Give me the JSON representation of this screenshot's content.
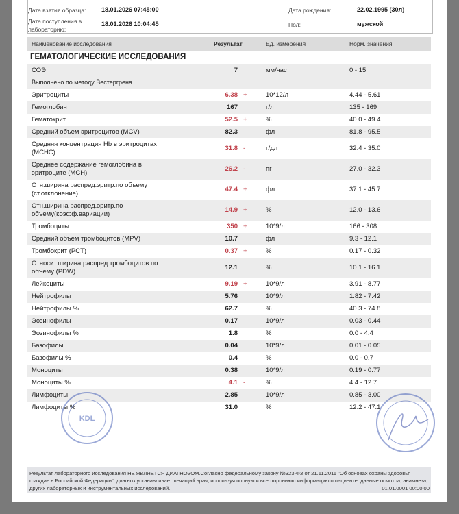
{
  "patient_info": {
    "sample_date_label": "Дата взятия образца:",
    "sample_date": "18.01.2026 07:45:00",
    "lab_date_label": "Дата поступления в лабораторию:",
    "lab_date": "18.01.2026 10:04:45",
    "birth_label": "Дата рождения:",
    "birth": "22.02.1995 (30л)",
    "sex_label": "Пол:",
    "sex": "мужской"
  },
  "table": {
    "headers": {
      "name": "Наименование исследования",
      "result": "Результат",
      "unit": "Ед. измерения",
      "norm": "Норм. значения"
    },
    "section_title": "ГЕМАТОЛОГИЧЕСКИЕ ИССЛЕДОВАНИЯ",
    "rows": [
      {
        "name": "СОЭ",
        "result": "7",
        "flag": "",
        "unit": "мм/час",
        "norm": "0 - 15",
        "note": "Выполнено по методу Вестергрена"
      },
      {
        "name": "Эритроциты",
        "result": "6.38",
        "flag": "+",
        "unit": "10*12/л",
        "norm": "4.44 - 5.61"
      },
      {
        "name": "Гемоглобин",
        "result": "167",
        "flag": "",
        "unit": "г/л",
        "norm": "135 - 169"
      },
      {
        "name": "Гематокрит",
        "result": "52.5",
        "flag": "+",
        "unit": "%",
        "norm": "40.0 - 49.4"
      },
      {
        "name": "Средний объем эритроцитов (MCV)",
        "result": "82.3",
        "flag": "",
        "unit": "фл",
        "norm": "81.8 - 95.5"
      },
      {
        "name": "Средняя концентрация Hb в эритроцитах (MCHC)",
        "result": "31.8",
        "flag": "-",
        "unit": "г/дл",
        "norm": "32.4 - 35.0"
      },
      {
        "name": "Среднее содержание гемоглобина в эритроците (MCH)",
        "result": "26.2",
        "flag": "-",
        "unit": "пг",
        "norm": "27.0 - 32.3"
      },
      {
        "name": "Отн.ширина распред.эритр.по объему (ст.отклонение)",
        "result": "47.4",
        "flag": "+",
        "unit": "фл",
        "norm": "37.1 - 45.7"
      },
      {
        "name": "Отн.ширина распред.эритр.по объему(коэфф.вариации)",
        "result": "14.9",
        "flag": "+",
        "unit": "%",
        "norm": "12.0 - 13.6"
      },
      {
        "name": "Тромбоциты",
        "result": "350",
        "flag": "+",
        "unit": "10*9/л",
        "norm": "166 - 308"
      },
      {
        "name": "Средний объем тромбоцитов (MPV)",
        "result": "10.7",
        "flag": "",
        "unit": "фл",
        "norm": "9.3 - 12.1"
      },
      {
        "name": "Тромбокрит (PCT)",
        "result": "0.37",
        "flag": "+",
        "unit": "%",
        "norm": "0.17 - 0.32"
      },
      {
        "name": "Относит.ширина распред.тромбоцитов по объему (PDW)",
        "result": "12.1",
        "flag": "",
        "unit": "%",
        "norm": "10.1 - 16.1"
      },
      {
        "name": "Лейкоциты",
        "result": "9.19",
        "flag": "+",
        "unit": "10*9/л",
        "norm": "3.91 - 8.77"
      },
      {
        "name": "Нейтрофилы",
        "result": "5.76",
        "flag": "",
        "unit": "10*9/л",
        "norm": "1.82 - 7.42"
      },
      {
        "name": "Нейтрофилы %",
        "result": "62.7",
        "flag": "",
        "unit": "%",
        "norm": "40.3 - 74.8"
      },
      {
        "name": "Эозинофилы",
        "result": "0.17",
        "flag": "",
        "unit": "10*9/л",
        "norm": "0.03 - 0.44"
      },
      {
        "name": "Эозинофилы %",
        "result": "1.8",
        "flag": "",
        "unit": "%",
        "norm": "0.0 - 4.4"
      },
      {
        "name": "Базофилы",
        "result": "0.04",
        "flag": "",
        "unit": "10*9/л",
        "norm": "0.01 - 0.05"
      },
      {
        "name": "Базофилы %",
        "result": "0.4",
        "flag": "",
        "unit": "%",
        "norm": "0.0 - 0.7"
      },
      {
        "name": "Моноциты",
        "result": "0.38",
        "flag": "",
        "unit": "10*9/л",
        "norm": "0.19 - 0.77"
      },
      {
        "name": "Моноциты %",
        "result": "4.1",
        "flag": "-",
        "unit": "%",
        "norm": "4.4 - 12.7"
      },
      {
        "name": "Лимфоциты",
        "result": "2.85",
        "flag": "",
        "unit": "10*9/л",
        "norm": "0.85 - 3.00"
      },
      {
        "name": "Лимфоциты %",
        "result": "31.0",
        "flag": "",
        "unit": "%",
        "norm": "12.2 - 47.1"
      }
    ]
  },
  "stamps": {
    "left_logo": "KDL",
    "color": "#4a63b8"
  },
  "footer": {
    "disclaimer": "Результат лабораторного исследования НЕ ЯВЛЯЕТСЯ ДИАГНОЗОМ.Согласно федеральному закону №323-ФЗ от 21.11.2011 \"Об основах охраны здоровья граждан в Российской Федерации\", диагноз устанавливает лечащий врач, используя полную и всестороннюю информацию о пациенте: данные осмотра, анамнеза, других лабораторных и инструментальных исследований.",
    "datetime": "01.01.0001 00:00:00"
  }
}
